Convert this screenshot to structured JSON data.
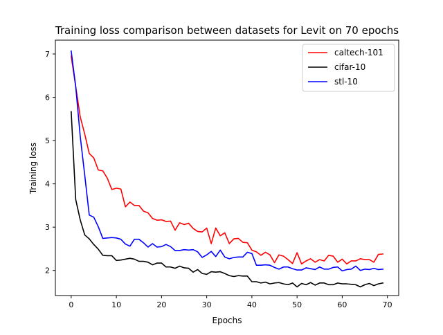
{
  "chart_data": {
    "type": "line",
    "title": "Training loss comparison between datasets for Levit on 70 epochs",
    "xlabel": "Epochs",
    "ylabel": "Training loss",
    "xlim": [
      -3.5,
      72.5
    ],
    "ylim": [
      1.42,
      7.32
    ],
    "xticks": [
      0,
      10,
      20,
      30,
      40,
      50,
      60,
      70
    ],
    "yticks": [
      2,
      3,
      4,
      5,
      6,
      7
    ],
    "grid": false,
    "legend_position": "upper-right",
    "x": [
      0,
      1,
      2,
      3,
      4,
      5,
      6,
      7,
      8,
      9,
      10,
      11,
      12,
      13,
      14,
      15,
      16,
      17,
      18,
      19,
      20,
      21,
      22,
      23,
      24,
      25,
      26,
      27,
      28,
      29,
      30,
      31,
      32,
      33,
      34,
      35,
      36,
      37,
      38,
      39,
      40,
      41,
      42,
      43,
      44,
      45,
      46,
      47,
      48,
      49,
      50,
      51,
      52,
      53,
      54,
      55,
      56,
      57,
      58,
      59,
      60,
      61,
      62,
      63,
      64,
      65,
      66,
      67,
      68,
      69
    ],
    "series": [
      {
        "name": "caltech-101",
        "color": "#ff0000",
        "values": [
          6.95,
          6.25,
          5.55,
          5.15,
          4.7,
          4.6,
          4.32,
          4.3,
          4.13,
          3.87,
          3.9,
          3.88,
          3.47,
          3.58,
          3.5,
          3.5,
          3.37,
          3.33,
          3.2,
          3.16,
          3.17,
          3.13,
          3.14,
          2.93,
          3.1,
          3.06,
          3.09,
          2.97,
          2.9,
          2.89,
          2.98,
          2.62,
          2.98,
          2.8,
          2.87,
          2.62,
          2.73,
          2.74,
          2.65,
          2.64,
          2.47,
          2.43,
          2.35,
          2.42,
          2.36,
          2.18,
          2.36,
          2.33,
          2.25,
          2.16,
          2.41,
          2.15,
          2.22,
          2.27,
          2.19,
          2.25,
          2.22,
          2.35,
          2.33,
          2.19,
          2.26,
          2.15,
          2.22,
          2.22,
          2.27,
          2.25,
          2.25,
          2.19,
          2.37,
          2.38
        ]
      },
      {
        "name": "cifar-10",
        "color": "#000000",
        "values": [
          5.67,
          3.64,
          3.17,
          2.82,
          2.73,
          2.6,
          2.49,
          2.35,
          2.34,
          2.34,
          2.23,
          2.24,
          2.26,
          2.28,
          2.26,
          2.21,
          2.21,
          2.19,
          2.13,
          2.17,
          2.17,
          2.08,
          2.08,
          2.05,
          2.1,
          2.06,
          2.05,
          1.96,
          2.02,
          1.93,
          1.91,
          1.97,
          1.96,
          1.97,
          1.93,
          1.88,
          1.86,
          1.88,
          1.87,
          1.87,
          1.74,
          1.74,
          1.71,
          1.73,
          1.69,
          1.71,
          1.72,
          1.69,
          1.67,
          1.71,
          1.62,
          1.7,
          1.67,
          1.72,
          1.66,
          1.71,
          1.71,
          1.67,
          1.67,
          1.71,
          1.69,
          1.69,
          1.68,
          1.67,
          1.62,
          1.67,
          1.7,
          1.65,
          1.69,
          1.71
        ]
      },
      {
        "name": "stl-10",
        "color": "#0000ff",
        "values": [
          7.07,
          6.25,
          5.1,
          4.2,
          3.28,
          3.23,
          3.01,
          2.74,
          2.75,
          2.76,
          2.75,
          2.72,
          2.61,
          2.56,
          2.72,
          2.72,
          2.64,
          2.54,
          2.62,
          2.54,
          2.55,
          2.6,
          2.55,
          2.46,
          2.46,
          2.48,
          2.47,
          2.48,
          2.43,
          2.3,
          2.36,
          2.44,
          2.32,
          2.47,
          2.31,
          2.27,
          2.3,
          2.31,
          2.31,
          2.42,
          2.39,
          2.12,
          2.12,
          2.13,
          2.12,
          2.07,
          2.03,
          2.08,
          2.08,
          2.04,
          2.01,
          2.01,
          2.06,
          2.04,
          2.02,
          2.08,
          2.03,
          2.03,
          2.07,
          2.08,
          1.99,
          2.02,
          2.03,
          2.1,
          2.0,
          2.03,
          2.02,
          2.05,
          2.02,
          2.03
        ]
      }
    ]
  }
}
